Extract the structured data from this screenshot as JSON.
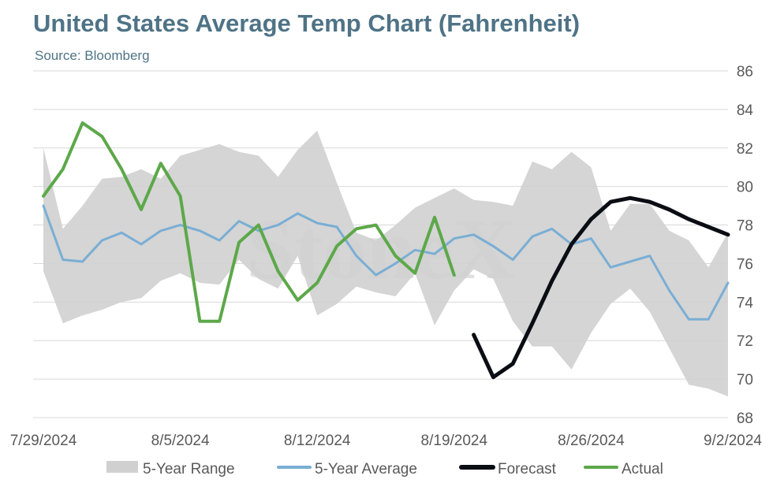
{
  "header": {
    "title": "United States Average Temp Chart (Fahrenheit)",
    "subtitle": "Source: Bloomberg"
  },
  "watermark": "StoneX",
  "colors": {
    "range": "#d0d0d0",
    "average": "#7aaed4",
    "forecast": "#0a0e14",
    "actual": "#5da84a",
    "grid": "#d9d9d9"
  },
  "chart_data": {
    "type": "line",
    "x_tick_labels": [
      "7/29/2024",
      "8/5/2024",
      "8/12/2024",
      "8/19/2024",
      "8/26/2024",
      "9/2/2024"
    ],
    "x_tick_index": [
      0,
      7,
      14,
      21,
      28,
      35
    ],
    "ylim": [
      68,
      86
    ],
    "y_ticks": [
      68,
      70,
      72,
      74,
      76,
      78,
      80,
      82,
      84,
      86
    ],
    "grid": true,
    "legend": "bottom",
    "x_dates": [
      "7/29",
      "7/30",
      "7/31",
      "8/1",
      "8/2",
      "8/3",
      "8/4",
      "8/5",
      "8/6",
      "8/7",
      "8/8",
      "8/9",
      "8/10",
      "8/11",
      "8/12",
      "8/13",
      "8/14",
      "8/15",
      "8/16",
      "8/17",
      "8/18",
      "8/19",
      "8/20",
      "8/21",
      "8/22",
      "8/23",
      "8/24",
      "8/25",
      "8/26",
      "8/27",
      "8/28",
      "8/29",
      "8/30",
      "8/31",
      "9/1",
      "9/2"
    ],
    "series": [
      {
        "name": "5-Year Range",
        "kind": "band",
        "upper": [
          82.0,
          77.8,
          79.0,
          80.4,
          80.5,
          80.9,
          80.4,
          81.6,
          81.9,
          82.2,
          81.8,
          81.6,
          80.5,
          81.9,
          82.9,
          80.2,
          77.6,
          77.2,
          78.0,
          78.9,
          79.4,
          79.9,
          79.3,
          79.2,
          79.0,
          81.3,
          80.9,
          81.8,
          81.0,
          77.7,
          79.1,
          79.1,
          77.7,
          77.2,
          75.8,
          77.6
        ],
        "lower": [
          75.6,
          72.9,
          73.3,
          73.6,
          74.0,
          74.2,
          75.1,
          75.5,
          75.0,
          74.9,
          76.2,
          75.2,
          74.7,
          76.4,
          73.3,
          73.9,
          74.8,
          74.5,
          74.3,
          75.5,
          72.8,
          74.6,
          75.7,
          75.2,
          73.0,
          71.7,
          71.7,
          70.5,
          72.4,
          73.9,
          74.7,
          73.5,
          71.6,
          69.7,
          69.5,
          69.1
        ]
      },
      {
        "name": "5-Year Average",
        "values": [
          79.0,
          76.2,
          76.1,
          77.2,
          77.6,
          77.0,
          77.7,
          78.0,
          77.7,
          77.2,
          78.2,
          77.7,
          78.0,
          78.6,
          78.1,
          77.9,
          76.4,
          75.4,
          76.0,
          76.7,
          76.5,
          77.3,
          77.5,
          76.9,
          76.2,
          77.4,
          77.8,
          77.0,
          77.3,
          75.8,
          76.1,
          76.4,
          74.6,
          73.1,
          73.1,
          75.0
        ]
      },
      {
        "name": "Forecast",
        "values": [
          null,
          null,
          null,
          null,
          null,
          null,
          null,
          null,
          null,
          null,
          null,
          null,
          null,
          null,
          null,
          null,
          null,
          null,
          null,
          null,
          null,
          null,
          72.3,
          70.1,
          70.8,
          72.9,
          75.1,
          77.0,
          78.3,
          79.2,
          79.4,
          79.2,
          78.8,
          78.3,
          77.9,
          77.5
        ]
      },
      {
        "name": "Actual",
        "values": [
          79.5,
          80.9,
          83.3,
          82.6,
          80.9,
          78.8,
          81.2,
          79.5,
          73.0,
          73.0,
          77.1,
          78.0,
          75.6,
          74.1,
          75.0,
          76.9,
          77.8,
          78.0,
          76.4,
          75.5,
          78.4,
          75.4,
          null,
          null,
          null,
          null,
          null,
          null,
          null,
          null,
          null,
          null,
          null,
          null,
          null,
          null
        ]
      }
    ]
  }
}
